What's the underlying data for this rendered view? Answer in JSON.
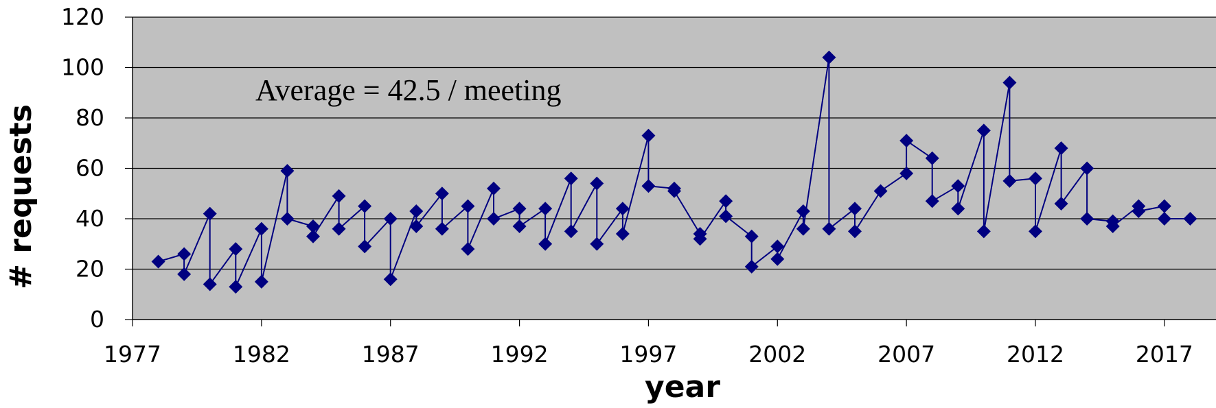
{
  "chart_data": {
    "type": "line",
    "xlabel": "year",
    "ylabel": "# requests",
    "annotation": "Average = 42.5 / meeting",
    "xlim": [
      1977,
      2019
    ],
    "ylim": [
      0,
      120
    ],
    "x_ticks": [
      1977,
      1982,
      1987,
      1992,
      1997,
      2002,
      2007,
      2012,
      2017
    ],
    "y_ticks": [
      0,
      20,
      40,
      60,
      80,
      100,
      120
    ],
    "grid": true,
    "legend": "none",
    "series": [
      {
        "marker": "diamond",
        "x": [
          1978,
          1979,
          1979,
          1980,
          1980,
          1981,
          1981,
          1982,
          1982,
          1983,
          1983,
          1984,
          1984,
          1985,
          1985,
          1986,
          1986,
          1987,
          1987,
          1988,
          1988,
          1989,
          1989,
          1990,
          1990,
          1991,
          1991,
          1992,
          1992,
          1993,
          1993,
          1994,
          1994,
          1995,
          1995,
          1996,
          1996,
          1997,
          1997,
          1998,
          1998,
          1999,
          1999,
          2000,
          2000,
          2001,
          2001,
          2002,
          2002,
          2003,
          2003,
          2004,
          2004,
          2005,
          2005,
          2006,
          2007,
          2007,
          2008,
          2008,
          2009,
          2009,
          2010,
          2010,
          2011,
          2011,
          2012,
          2012,
          2013,
          2013,
          2014,
          2014,
          2015,
          2015,
          2016,
          2016,
          2017,
          2017,
          2018
        ],
        "y": [
          23,
          26,
          18,
          42,
          14,
          28,
          13,
          36,
          15,
          59,
          40,
          37,
          33,
          49,
          36,
          45,
          29,
          40,
          16,
          43,
          37,
          50,
          36,
          45,
          28,
          52,
          40,
          44,
          37,
          44,
          30,
          56,
          35,
          54,
          30,
          44,
          34,
          73,
          53,
          52,
          51,
          34,
          32,
          47,
          41,
          33,
          21,
          29,
          24,
          43,
          36,
          104,
          36,
          44,
          35,
          51,
          58,
          71,
          64,
          47,
          53,
          44,
          75,
          35,
          94,
          55,
          56,
          35,
          68,
          46,
          60,
          40,
          39,
          37,
          45,
          43,
          45,
          40,
          40
        ]
      }
    ],
    "colors": {
      "plot_background": "#c0c0c0",
      "series": "#000080",
      "gridline": "#000000"
    }
  }
}
